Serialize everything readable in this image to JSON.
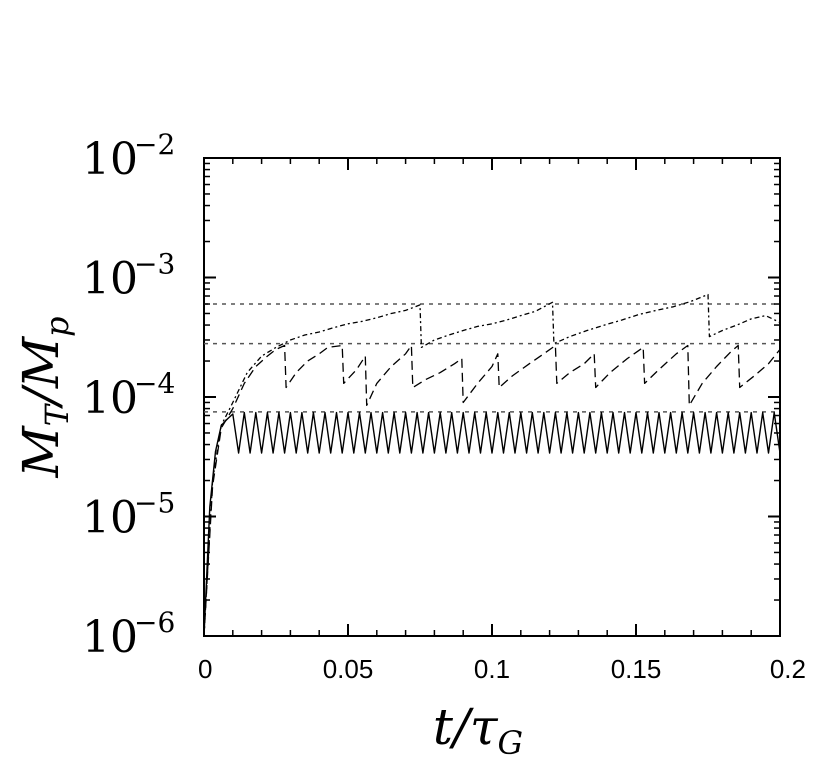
{
  "chart_data": {
    "type": "line",
    "xlabel": "t/τ",
    "xlabel_sub": "G",
    "ylabel": "M",
    "ylabel_sub1": "T",
    "ylabel_mid": "/M",
    "ylabel_sub2": "p",
    "xlim": [
      0,
      0.2
    ],
    "ylim": [
      1e-06,
      0.01
    ],
    "yscale": "log",
    "x_ticks": [
      {
        "value": 0,
        "label": "0"
      },
      {
        "value": 0.05,
        "label": "0.05"
      },
      {
        "value": 0.1,
        "label": "0.1"
      },
      {
        "value": 0.15,
        "label": "0.15"
      },
      {
        "value": 0.2,
        "label": "0.2"
      }
    ],
    "y_ticks": [
      {
        "value": 1e-06,
        "base": "10",
        "exp": "−6"
      },
      {
        "value": 1e-05,
        "base": "10",
        "exp": "−5"
      },
      {
        "value": 0.0001,
        "base": "10",
        "exp": "−4"
      },
      {
        "value": 0.001,
        "base": "10",
        "exp": "−3"
      },
      {
        "value": 0.01,
        "base": "10",
        "exp": "−2"
      }
    ],
    "reference_lines": [
      0.0006,
      0.00028,
      7.5e-05
    ],
    "grid": false,
    "series": [
      {
        "style": "solid",
        "x": [
          0,
          0.002,
          0.004,
          0.006,
          0.008,
          0.01,
          0.012,
          0.014,
          0.016,
          0.018,
          0.02,
          0.022,
          0.024,
          0.026,
          0.028,
          0.03,
          0.032,
          0.034,
          0.036,
          0.038,
          0.04,
          0.042,
          0.044,
          0.046,
          0.048,
          0.05,
          0.052,
          0.054,
          0.056,
          0.058,
          0.06,
          0.062,
          0.064,
          0.066,
          0.068,
          0.07,
          0.072,
          0.074,
          0.076,
          0.078,
          0.08,
          0.082,
          0.084,
          0.086,
          0.088,
          0.09,
          0.092,
          0.094,
          0.096,
          0.098,
          0.1,
          0.102,
          0.104,
          0.106,
          0.108,
          0.11,
          0.112,
          0.114,
          0.116,
          0.118,
          0.12,
          0.122,
          0.124,
          0.126,
          0.128,
          0.13,
          0.132,
          0.134,
          0.136,
          0.138,
          0.14,
          0.142,
          0.144,
          0.146,
          0.148,
          0.15,
          0.152,
          0.154,
          0.156,
          0.158,
          0.16,
          0.162,
          0.164,
          0.166,
          0.168,
          0.17,
          0.172,
          0.174,
          0.176,
          0.178,
          0.18,
          0.182,
          0.184,
          0.186,
          0.188,
          0.19,
          0.192,
          0.194,
          0.196,
          0.198,
          0.2
        ],
        "y": [
          1e-06,
          1.2e-05,
          3.5e-05,
          5.8e-05,
          6.5e-05,
          7.2e-05,
          3.4e-05,
          7.4e-05,
          3.4e-05,
          7.4e-05,
          3.4e-05,
          7.4e-05,
          3.4e-05,
          7.4e-05,
          3.4e-05,
          7.4e-05,
          3.4e-05,
          7.4e-05,
          3.4e-05,
          7.4e-05,
          3.4e-05,
          7.4e-05,
          3.4e-05,
          7.4e-05,
          3.4e-05,
          7.4e-05,
          3.4e-05,
          7.4e-05,
          3.4e-05,
          7.4e-05,
          3.4e-05,
          7.4e-05,
          3.4e-05,
          7.4e-05,
          3.4e-05,
          7.4e-05,
          3.4e-05,
          7.4e-05,
          3.4e-05,
          7.4e-05,
          3.4e-05,
          7.4e-05,
          3.4e-05,
          7.4e-05,
          3.4e-05,
          7.4e-05,
          3.4e-05,
          7.4e-05,
          3.4e-05,
          7.4e-05,
          3.4e-05,
          7.4e-05,
          3.4e-05,
          7.4e-05,
          3.4e-05,
          7.4e-05,
          3.4e-05,
          7.4e-05,
          3.4e-05,
          7.4e-05,
          3.4e-05,
          7.4e-05,
          3.4e-05,
          7.4e-05,
          3.4e-05,
          7.4e-05,
          3.4e-05,
          7.4e-05,
          3.4e-05,
          7.4e-05,
          3.4e-05,
          7.4e-05,
          3.4e-05,
          7.4e-05,
          3.4e-05,
          7.4e-05,
          3.4e-05,
          7.4e-05,
          3.4e-05,
          7.4e-05,
          3.4e-05,
          7.4e-05,
          3.4e-05,
          7.4e-05,
          3.4e-05,
          7.4e-05,
          3.4e-05,
          7.4e-05,
          3.4e-05,
          7.4e-05,
          3.4e-05,
          7.4e-05,
          3.4e-05,
          7.4e-05,
          3.4e-05,
          7.4e-05,
          3.4e-05,
          7.4e-05,
          3.4e-05,
          7.4e-05,
          3.4e-05
        ]
      },
      {
        "style": "dashed",
        "x": [
          0,
          0.003,
          0.006,
          0.01,
          0.014,
          0.018,
          0.022,
          0.025,
          0.028,
          0.0285,
          0.032,
          0.036,
          0.04,
          0.043,
          0.048,
          0.0485,
          0.053,
          0.056,
          0.0565,
          0.06,
          0.065,
          0.07,
          0.072,
          0.0725,
          0.077,
          0.082,
          0.087,
          0.0895,
          0.09,
          0.095,
          0.1,
          0.102,
          0.1025,
          0.107,
          0.113,
          0.118,
          0.122,
          0.1225,
          0.127,
          0.132,
          0.1355,
          0.136,
          0.141,
          0.147,
          0.1525,
          0.153,
          0.158,
          0.164,
          0.168,
          0.1685,
          0.173,
          0.178,
          0.183,
          0.1855,
          0.186,
          0.191,
          0.196,
          0.2
        ],
        "y": [
          1e-06,
          1.8e-05,
          5.5e-05,
          8e-05,
          0.00013,
          0.00018,
          0.00022,
          0.00025,
          0.00027,
          0.00012,
          0.00016,
          0.0002,
          0.00023,
          0.00026,
          0.00027,
          0.00013,
          0.00017,
          0.00022,
          8.5e-05,
          0.00013,
          0.00018,
          0.00023,
          0.00027,
          0.00012,
          0.00014,
          0.00016,
          0.00019,
          0.00021,
          9e-05,
          0.00013,
          0.00018,
          0.00023,
          0.00012,
          0.00015,
          0.00019,
          0.00023,
          0.00027,
          0.00013,
          0.00016,
          0.00019,
          0.00023,
          0.00012,
          0.00016,
          0.00021,
          0.00026,
          0.00013,
          0.00017,
          0.00023,
          0.00027,
          8.5e-05,
          0.00013,
          0.00018,
          0.00024,
          0.00027,
          0.00012,
          0.00015,
          0.00019,
          0.00025
        ]
      },
      {
        "style": "dotted",
        "x": [
          0,
          0.003,
          0.006,
          0.01,
          0.015,
          0.02,
          0.025,
          0.03,
          0.035,
          0.04,
          0.045,
          0.05,
          0.055,
          0.06,
          0.065,
          0.07,
          0.075,
          0.0755,
          0.08,
          0.085,
          0.09,
          0.095,
          0.1,
          0.105,
          0.11,
          0.115,
          0.121,
          0.1215,
          0.127,
          0.133,
          0.139,
          0.145,
          0.151,
          0.157,
          0.163,
          0.169,
          0.175,
          0.1755,
          0.18,
          0.185,
          0.19,
          0.195,
          0.2
        ],
        "y": [
          1e-06,
          2e-05,
          5.8e-05,
          9e-05,
          0.00016,
          0.00022,
          0.00026,
          0.0003,
          0.00033,
          0.00035,
          0.00038,
          0.00041,
          0.00043,
          0.00046,
          0.0005,
          0.00053,
          0.00059,
          0.00026,
          0.0003,
          0.00033,
          0.00036,
          0.00039,
          0.00041,
          0.00044,
          0.00048,
          0.00052,
          0.00062,
          0.00028,
          0.00032,
          0.00036,
          0.0004,
          0.00044,
          0.00049,
          0.00053,
          0.00057,
          0.00063,
          0.00072,
          0.00032,
          0.00036,
          0.0004,
          0.00045,
          0.00048,
          0.00042
        ]
      }
    ]
  }
}
